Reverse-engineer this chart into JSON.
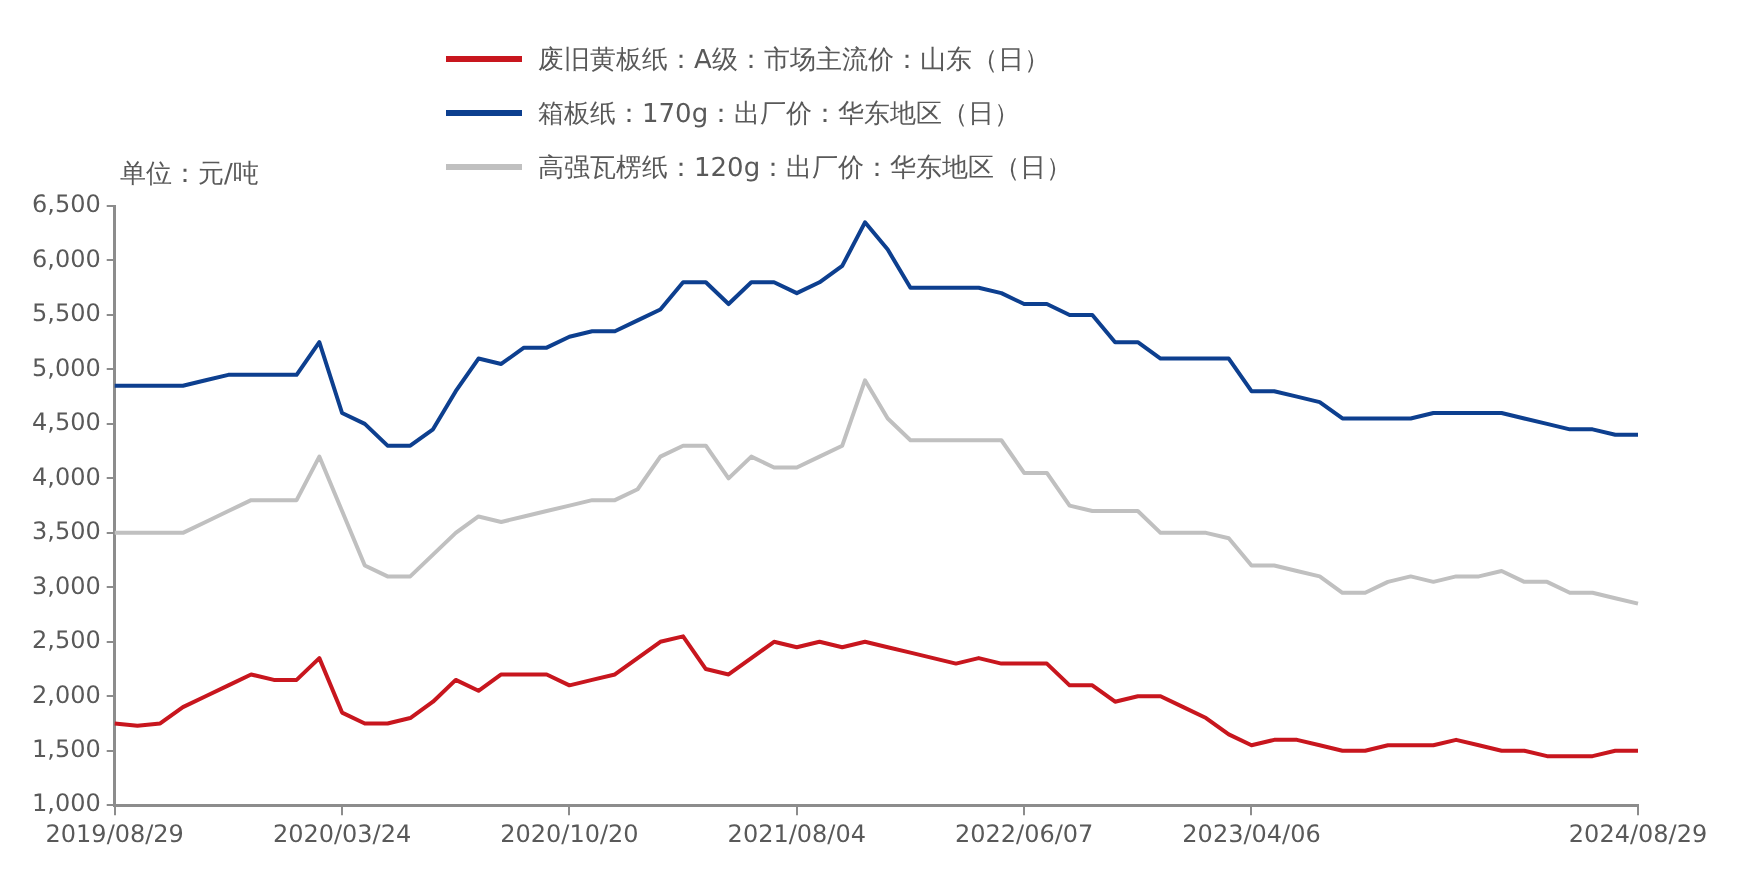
{
  "chart_data": {
    "type": "line",
    "ylabel": "单位：元/吨",
    "legend": "top",
    "marker": "none",
    "grid": false,
    "categories": [
      "2019/08/29",
      null,
      null,
      null,
      null,
      null,
      null,
      null,
      null,
      null,
      "2020/03/24",
      null,
      null,
      null,
      null,
      null,
      null,
      null,
      null,
      null,
      "2020/10/20",
      null,
      null,
      null,
      null,
      null,
      null,
      null,
      null,
      null,
      "2021/08/04",
      null,
      null,
      null,
      null,
      null,
      null,
      null,
      null,
      null,
      "2022/06/07",
      null,
      null,
      null,
      null,
      null,
      null,
      null,
      null,
      null,
      "2023/04/06",
      null,
      null,
      null,
      null,
      null,
      null,
      null,
      null,
      null,
      null,
      null,
      null,
      null,
      null,
      null,
      null,
      "2024/08/29"
    ],
    "ylim": [
      1000,
      6500
    ],
    "yticks": [
      {
        "value": 1000,
        "label": "1,000"
      },
      {
        "value": 1500,
        "label": "1,500"
      },
      {
        "value": 2000,
        "label": "2,000"
      },
      {
        "value": 2500,
        "label": "2,500"
      },
      {
        "value": 3000,
        "label": "3,000"
      },
      {
        "value": 3500,
        "label": "3,500"
      },
      {
        "value": 4000,
        "label": "4,000"
      },
      {
        "value": 4500,
        "label": "4,500"
      },
      {
        "value": 5000,
        "label": "5,000"
      },
      {
        "value": 5500,
        "label": "5,500"
      },
      {
        "value": 6000,
        "label": "6,000"
      },
      {
        "value": 6500,
        "label": "6,500"
      }
    ],
    "series": [
      {
        "name": "废旧黄板纸：A级：市场主流价：山东（日）",
        "color": "#c8161e",
        "values": [
          1750,
          1730,
          1750,
          1900,
          2000,
          2100,
          2200,
          2150,
          2150,
          2350,
          1850,
          1750,
          1750,
          1800,
          1950,
          2150,
          2050,
          2200,
          2200,
          2200,
          2100,
          2150,
          2200,
          2350,
          2500,
          2550,
          2250,
          2200,
          2350,
          2500,
          2450,
          2500,
          2450,
          2500,
          2450,
          2400,
          2350,
          2300,
          2350,
          2300,
          2300,
          2300,
          2100,
          2100,
          1950,
          2000,
          2000,
          1900,
          1800,
          1650,
          1550,
          1600,
          1600,
          1550,
          1500,
          1500,
          1550,
          1550,
          1550,
          1600,
          1550,
          1500,
          1500,
          1450,
          1450,
          1450,
          1500,
          1500
        ]
      },
      {
        "name": "箱板纸：170g：出厂价：华东地区（日）",
        "color": "#0d3f8f",
        "values": [
          4850,
          4850,
          4850,
          4850,
          4900,
          4950,
          4950,
          4950,
          4950,
          5250,
          4600,
          4500,
          4300,
          4300,
          4450,
          4800,
          5100,
          5050,
          5200,
          5200,
          5300,
          5350,
          5350,
          5450,
          5550,
          5800,
          5800,
          5600,
          5800,
          5800,
          5700,
          5800,
          5950,
          6350,
          6100,
          5750,
          5750,
          5750,
          5750,
          5700,
          5600,
          5600,
          5500,
          5500,
          5250,
          5250,
          5100,
          5100,
          5100,
          5100,
          4800,
          4800,
          4750,
          4700,
          4550,
          4550,
          4550,
          4550,
          4600,
          4600,
          4600,
          4600,
          4550,
          4500,
          4450,
          4450,
          4400,
          4400
        ]
      },
      {
        "name": "高强瓦楞纸：120g：出厂价：华东地区（日）",
        "color": "#c0c0c0",
        "values": [
          3500,
          3500,
          3500,
          3500,
          3600,
          3700,
          3800,
          3800,
          3800,
          4200,
          3700,
          3200,
          3100,
          3100,
          3300,
          3500,
          3650,
          3600,
          3650,
          3700,
          3750,
          3800,
          3800,
          3900,
          4200,
          4300,
          4300,
          4000,
          4200,
          4100,
          4100,
          4200,
          4300,
          4900,
          4550,
          4350,
          4350,
          4350,
          4350,
          4350,
          4050,
          4050,
          3750,
          3700,
          3700,
          3700,
          3500,
          3500,
          3500,
          3450,
          3200,
          3200,
          3150,
          3100,
          2950,
          2950,
          3050,
          3100,
          3050,
          3100,
          3100,
          3150,
          3050,
          3050,
          2950,
          2950,
          2900,
          2850
        ]
      }
    ]
  }
}
